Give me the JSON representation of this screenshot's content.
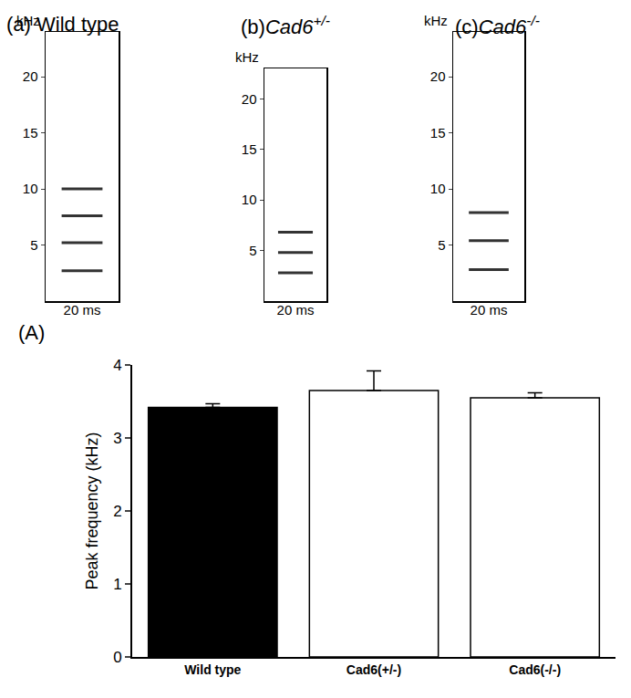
{
  "chart_data": [
    {
      "type": "spectrogram",
      "title": "(a) Wild type",
      "y_label": "kHz",
      "x_label": "20 ms",
      "ylim": [
        0,
        24
      ],
      "yticks": [
        5,
        10,
        15,
        20
      ],
      "harmonics": [
        2.7,
        5.2,
        7.6,
        10.0
      ]
    },
    {
      "type": "spectrogram",
      "title": "(b)",
      "gene": "Cad6",
      "superscript": "+/-",
      "y_label": "kHz",
      "x_label": "20 ms",
      "ylim": [
        0,
        23
      ],
      "yticks": [
        5,
        10,
        15,
        20
      ],
      "harmonics": [
        2.8,
        4.8,
        6.8
      ]
    },
    {
      "type": "spectrogram",
      "title": "(c)",
      "gene": "Cad6",
      "superscript": "-/-",
      "y_label": "kHz",
      "x_label": "20 ms",
      "ylim": [
        0,
        24
      ],
      "yticks": [
        5,
        10,
        15,
        20
      ],
      "harmonics": [
        2.8,
        5.4,
        7.9
      ]
    },
    {
      "type": "bar",
      "title": "(A)",
      "y_label": "Peak frequency (kHz)",
      "categories": [
        "Wild type",
        "Cad6(+/-)",
        "Cad6(-/-)"
      ],
      "values": [
        3.42,
        3.65,
        3.55
      ],
      "errors": [
        0.05,
        0.27,
        0.07
      ],
      "colors": [
        "#000000",
        "#ffffff",
        "#ffffff"
      ],
      "ylim": [
        0,
        4
      ],
      "yticks": [
        0,
        1,
        2,
        3,
        4
      ]
    }
  ]
}
